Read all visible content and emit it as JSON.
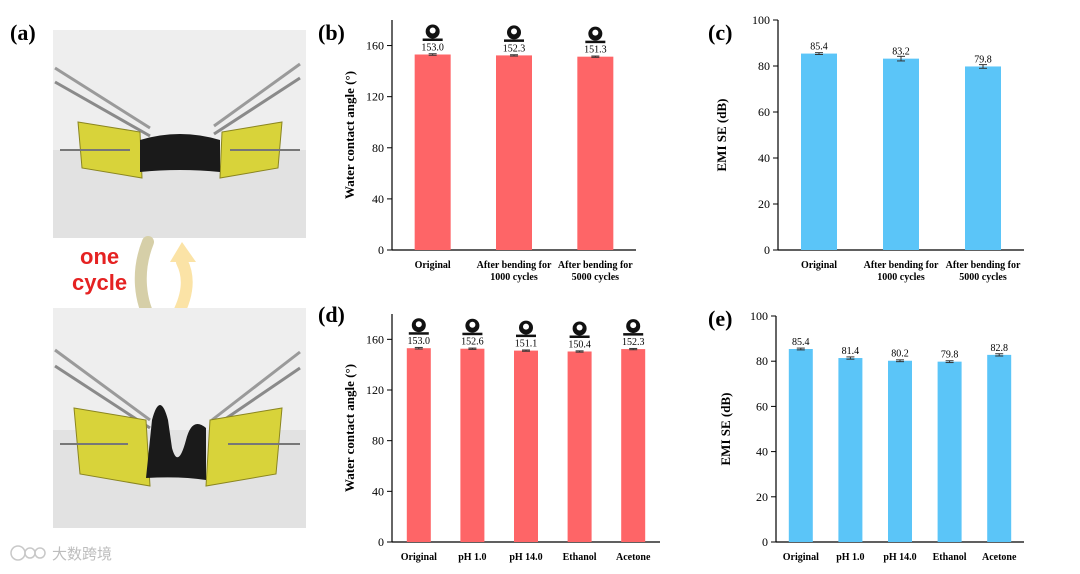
{
  "panel_a": {
    "label": "(a)",
    "cycle_line1": "one",
    "cycle_line2": "cycle"
  },
  "watermark": "大数跨境",
  "colors": {
    "red_bar": "#fe6567",
    "blue_bar": "#5bc5f8",
    "clip": "#d8d33a"
  },
  "chart_data": [
    {
      "id": "b",
      "label": "(b)",
      "type": "bar",
      "ylabel": "Water contact angle (°)",
      "ylim": [
        0,
        180
      ],
      "yticks": [
        0,
        40,
        80,
        120,
        160
      ],
      "categories": [
        [
          "Original"
        ],
        [
          "After bending for",
          "1000 cycles"
        ],
        [
          "After bending for",
          "5000 cycles"
        ]
      ],
      "values": [
        153.0,
        152.3,
        151.3
      ],
      "value_labels": [
        "153.0",
        "152.3",
        "151.3"
      ],
      "errors": [
        0.6,
        0.5,
        0.5
      ],
      "droplet_icons": true,
      "color": "#fe6567"
    },
    {
      "id": "c",
      "label": "(c)",
      "type": "bar",
      "ylabel": "EMI SE (dB)",
      "ylim": [
        0,
        100
      ],
      "yticks": [
        0,
        20,
        40,
        60,
        80,
        100
      ],
      "categories": [
        [
          "Original"
        ],
        [
          "After bending for",
          "1000 cycles"
        ],
        [
          "After bending for",
          "5000 cycles"
        ]
      ],
      "values": [
        85.4,
        83.2,
        79.8
      ],
      "value_labels": [
        "85.4",
        "83.2",
        "79.8"
      ],
      "errors": [
        0.4,
        1.0,
        0.8
      ],
      "droplet_icons": false,
      "color": "#5bc5f8"
    },
    {
      "id": "d",
      "label": "(d)",
      "type": "bar",
      "ylabel": "Water contact angle (°)",
      "ylim": [
        0,
        180
      ],
      "yticks": [
        0,
        40,
        80,
        120,
        160
      ],
      "categories": [
        [
          "Original"
        ],
        [
          "pH 1.0"
        ],
        [
          "pH 14.0"
        ],
        [
          "Ethanol"
        ],
        [
          "Acetone"
        ]
      ],
      "values": [
        153.0,
        152.6,
        151.1,
        150.4,
        152.3
      ],
      "value_labels": [
        "153.0",
        "152.6",
        "151.1",
        "150.4",
        "152.3"
      ],
      "errors": [
        0.6,
        0.5,
        0.5,
        0.5,
        0.5
      ],
      "droplet_icons": true,
      "color": "#fe6567"
    },
    {
      "id": "e",
      "label": "(e)",
      "type": "bar",
      "ylabel": "EMI SE (dB)",
      "ylim": [
        0,
        100
      ],
      "yticks": [
        0,
        20,
        40,
        60,
        80,
        100
      ],
      "categories": [
        [
          "Original"
        ],
        [
          "pH 1.0"
        ],
        [
          "pH 14.0"
        ],
        [
          "Ethanol"
        ],
        [
          "Acetone"
        ]
      ],
      "values": [
        85.4,
        81.4,
        80.2,
        79.8,
        82.8
      ],
      "value_labels": [
        "85.4",
        "81.4",
        "80.2",
        "79.8",
        "82.8"
      ],
      "errors": [
        0.4,
        0.5,
        0.4,
        0.4,
        0.5
      ],
      "droplet_icons": false,
      "color": "#5bc5f8"
    }
  ]
}
